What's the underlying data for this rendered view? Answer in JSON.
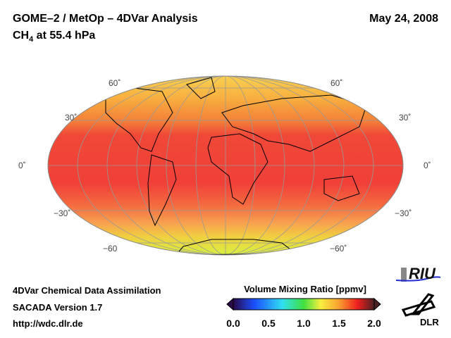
{
  "header": {
    "title": "GOME–2 / MetOp – 4DVar Analysis",
    "subtitle_species": "CH",
    "subtitle_subscript": "4",
    "subtitle_level": " at 55.4 hPa",
    "date": "May 24, 2008"
  },
  "map": {
    "lat_labels_left": [
      "60˚",
      "30˚",
      "0˚",
      "−30˚",
      "−60"
    ],
    "lat_labels_right": [
      "60˚",
      "30˚",
      "0˚",
      "−30˚",
      "−60˚"
    ]
  },
  "footer": {
    "line1": "4DVar Chemical Data Assimilation",
    "line2": "SACADA Version 1.7",
    "line3": "http://wdc.dlr.de"
  },
  "colorbar": {
    "label": "Volume Mixing Ratio [ppmv]",
    "ticks": [
      "0.0",
      "0.5",
      "1.0",
      "1.5",
      "2.0"
    ],
    "range": [
      0.0,
      2.0
    ],
    "colors": [
      "#2a0a4a",
      "#1a4fff",
      "#30e0f0",
      "#40e040",
      "#f8f040",
      "#f8a030",
      "#f02020",
      "#4a2020"
    ]
  },
  "logos": {
    "riu": "RIU",
    "dlr": "DLR"
  }
}
